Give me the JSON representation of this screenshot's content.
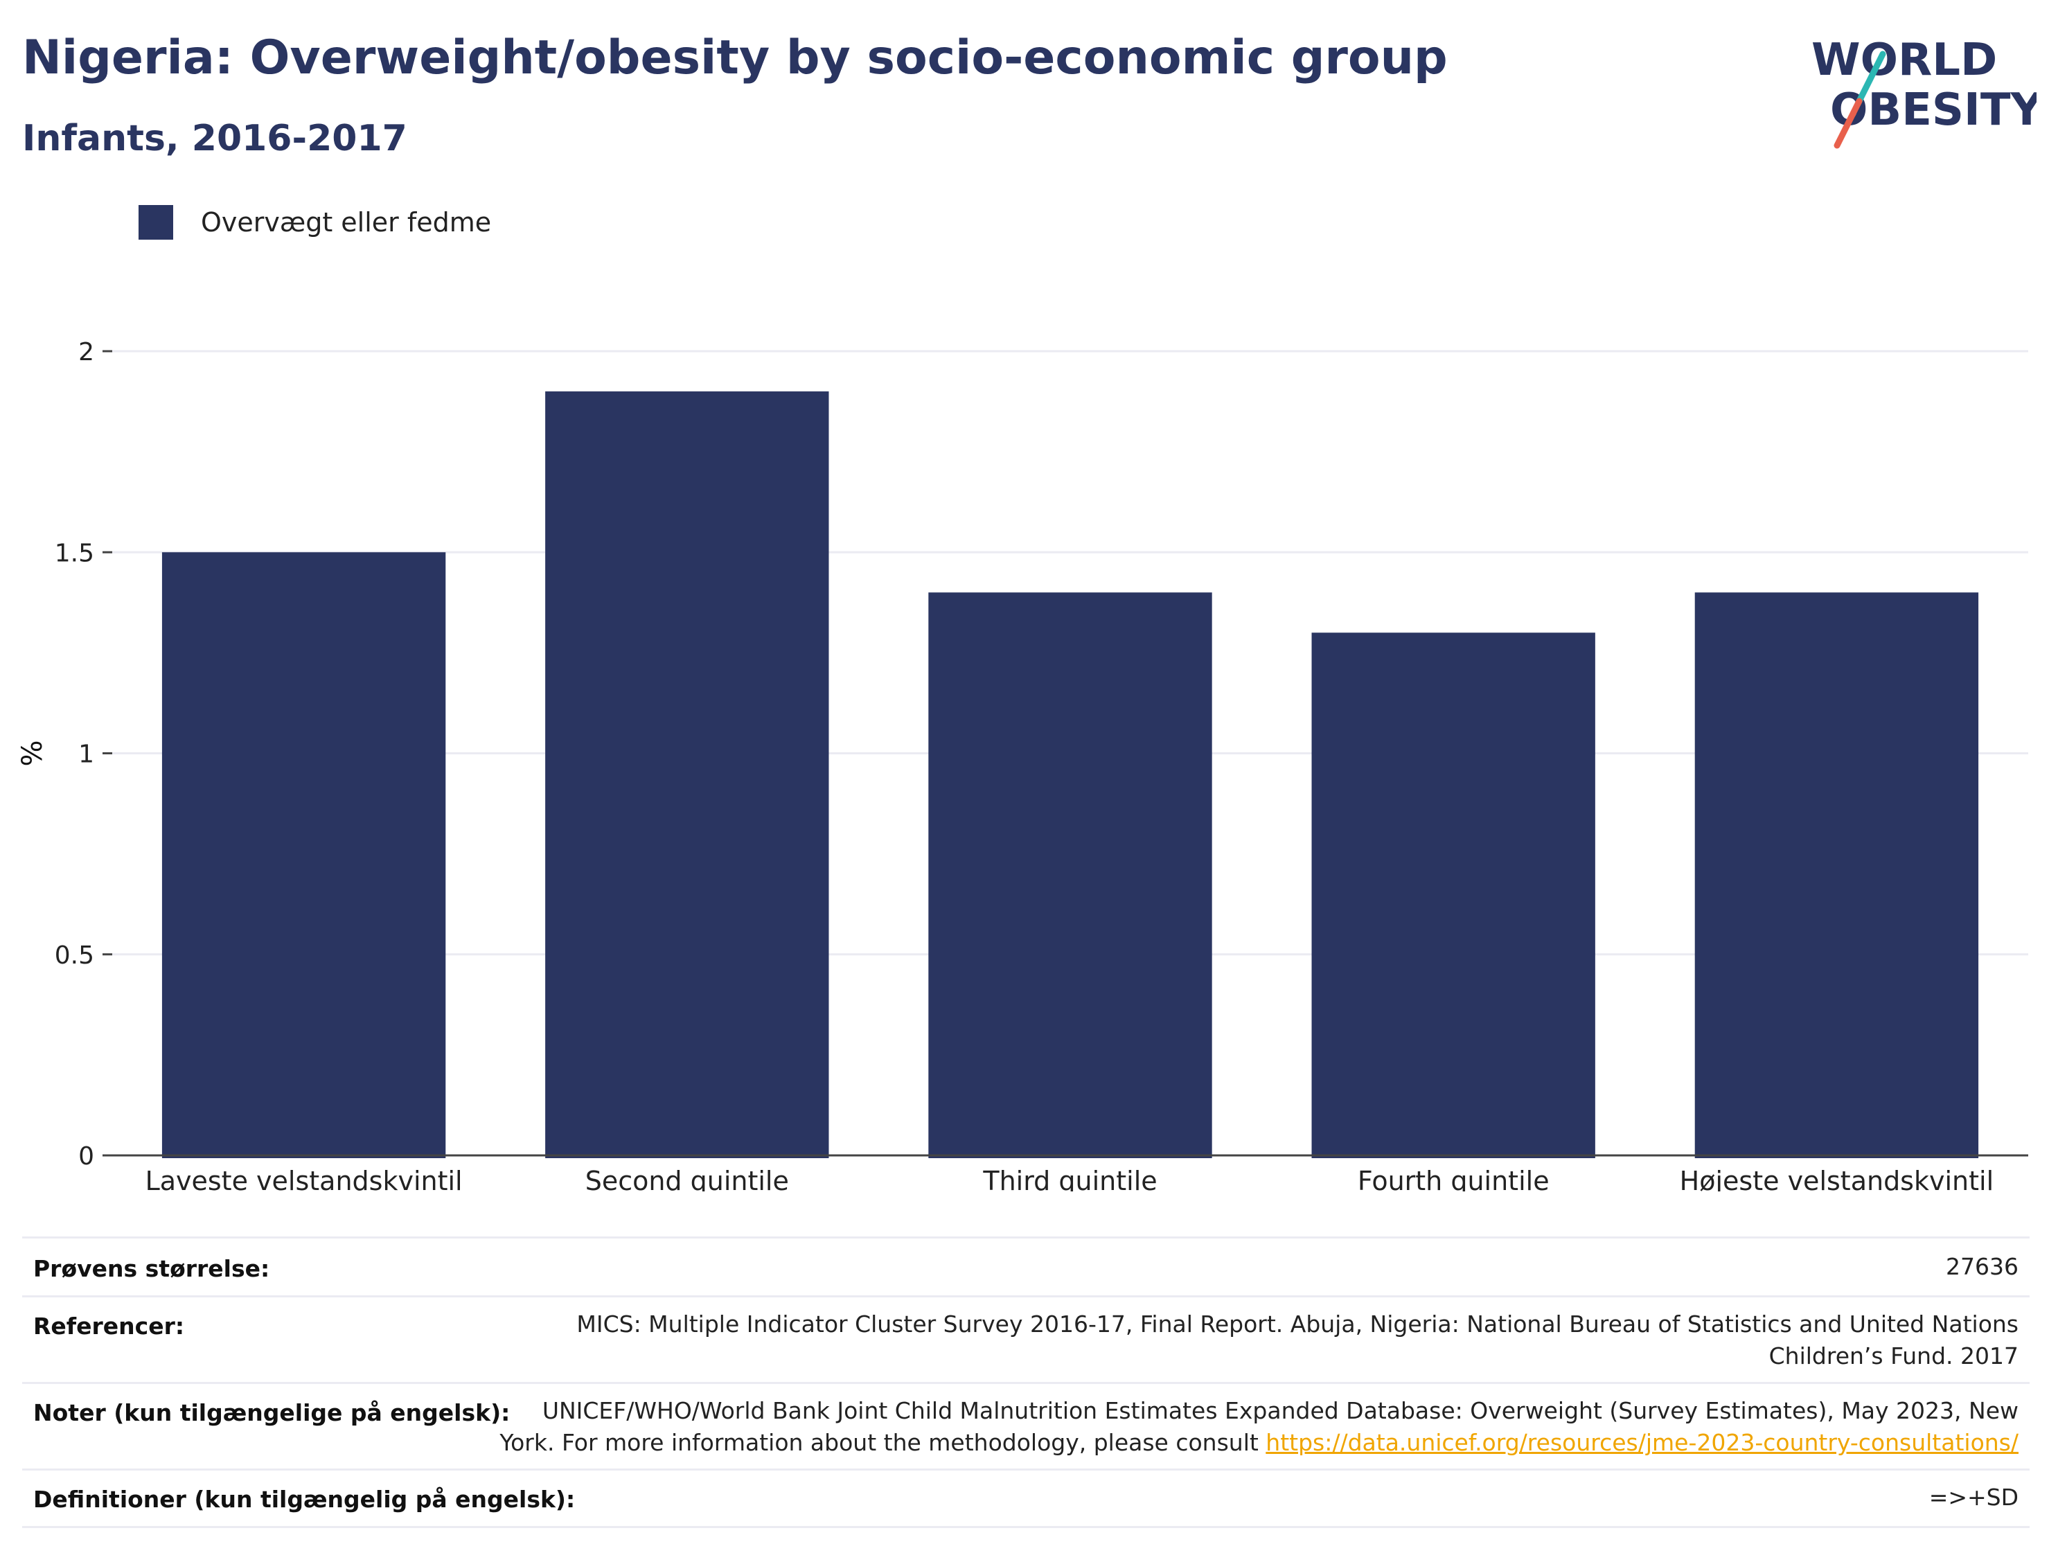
{
  "header": {
    "title": "Nigeria: Overweight/obesity by socio-economic group",
    "subtitle": "Infants, 2016-2017"
  },
  "logo": {
    "line1": "WORLD",
    "line2": "OBESITY",
    "colors": {
      "text": "#2a3561",
      "slash_top": "#2bb7b3",
      "slash_bottom": "#e8604c"
    }
  },
  "legend": {
    "label": "Overvægt eller fedme"
  },
  "colors": {
    "bar": "#2a3561",
    "grid": "#ebebf2",
    "axis": "#444444",
    "link": "#f0a500"
  },
  "chart_data": {
    "type": "bar",
    "categories": [
      "Laveste velstandskvintil",
      "Second quintile",
      "Third quintile",
      "Fourth quintile",
      "Højeste velstandskvintil"
    ],
    "series": [
      {
        "name": "Overvægt eller fedme",
        "values": [
          1.5,
          1.9,
          1.4,
          1.3,
          1.4
        ]
      }
    ],
    "ylabel": "%",
    "ylim": [
      0,
      2
    ],
    "yticks": [
      0,
      0.5,
      1,
      1.5,
      2
    ],
    "ytick_labels": [
      "0",
      "0.5",
      "1",
      "1.5",
      "2"
    ],
    "grid": true,
    "legend_position": "top-left"
  },
  "meta": {
    "sample_size": {
      "label": "Prøvens størrelse:",
      "value": "27636"
    },
    "references": {
      "label": "Referencer:",
      "value_line1": "MICS: Multiple Indicator Cluster Survey 2016-17, Final Report. Abuja, Nigeria: National Bureau of Statistics and United Nations",
      "value_line2": "Children’s Fund. 2017"
    },
    "notes": {
      "label": "Noter (kun tilgængelige på engelsk):",
      "value_line1": "UNICEF/WHO/World Bank Joint Child Malnutrition Estimates Expanded Database: Overweight (Survey Estimates), May 2023, New",
      "value_line2": "York. For more information about the methodology, please consult ",
      "link": "https://data.unicef.org/resources/jme-2023-country-consultations/"
    },
    "definitions": {
      "label": "Definitioner (kun tilgængelig på engelsk):",
      "value": "=>+SD"
    }
  }
}
